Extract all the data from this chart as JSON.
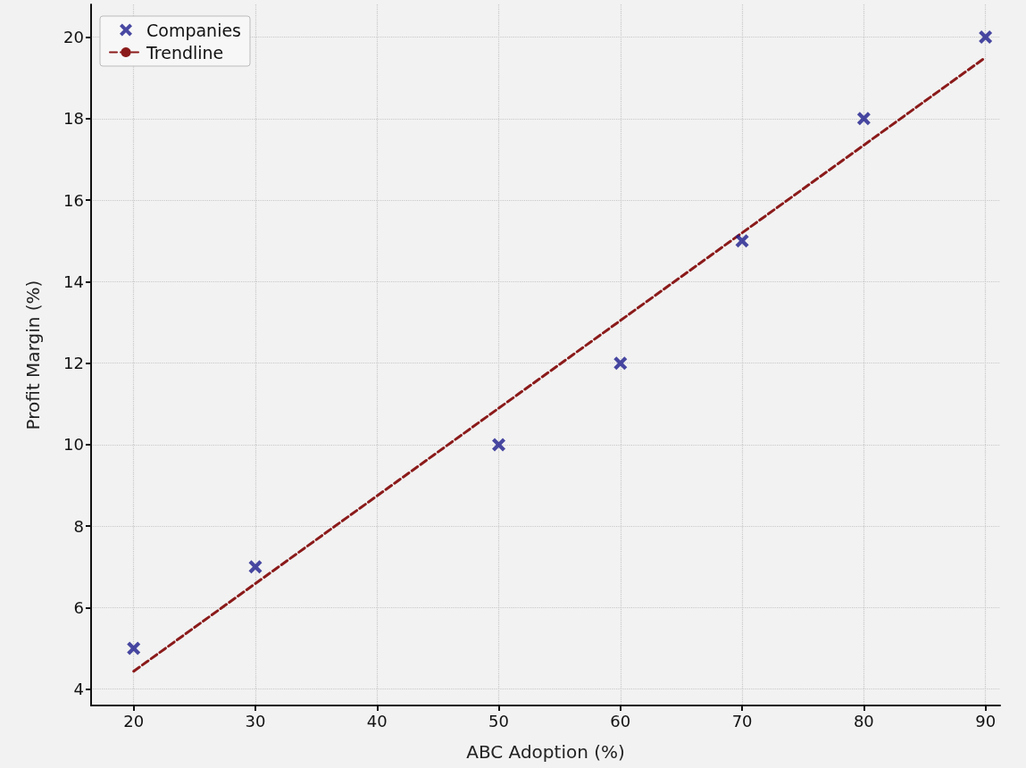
{
  "chart_data": {
    "type": "scatter",
    "xlabel": "ABC Adoption (%)",
    "ylabel": "Profit Margin (%)",
    "x": [
      20,
      30,
      50,
      60,
      70,
      80,
      90
    ],
    "series": [
      {
        "name": "Companies",
        "type": "scatter",
        "color": "#1c1c8c",
        "marker": "cross",
        "values": [
          5,
          7,
          10,
          12,
          15,
          18,
          20
        ]
      },
      {
        "name": "Trendline",
        "type": "line",
        "color": "#8b1a1a",
        "marker": "none",
        "line_style": "dashed",
        "x": [
          20,
          90
        ],
        "values": [
          4.44,
          19.5
        ]
      }
    ],
    "xlim": [
      16.5,
      91.2
    ],
    "xticks": [
      20,
      30,
      40,
      50,
      60,
      70,
      80,
      90
    ],
    "ylim": [
      3.6,
      20.8
    ],
    "yticks": [
      4,
      6,
      8,
      10,
      12,
      14,
      16,
      18,
      20
    ],
    "grid": true,
    "legend": "top left"
  }
}
